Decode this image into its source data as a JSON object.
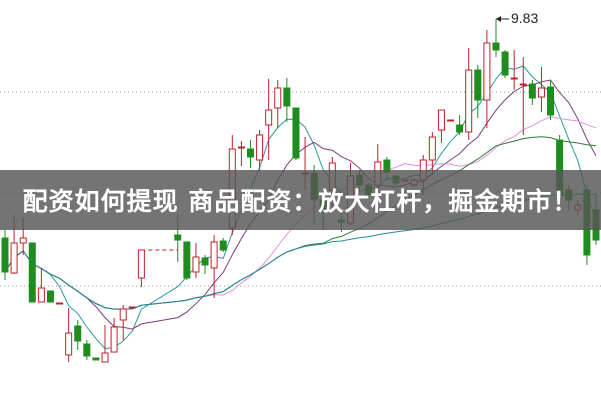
{
  "banner": {
    "title": "配资如何提现 商品配资：放大杠杆，掘金期市！"
  },
  "chart_data": {
    "type": "candlestick",
    "title": "",
    "peak_label": "9.83",
    "ylim": [
      6.01,
      10.02
    ],
    "gridlines": [
      9.1,
      8.09,
      7.16
    ],
    "colors": {
      "up": "#c0202a",
      "down": "#1e8c1e",
      "ma5": "#2a9a9a",
      "ma10": "#7a3d7a",
      "ma20": "#e48ee4",
      "ma30": "#2f7a2f",
      "ma60": "#238a9c",
      "grid": "#999999"
    },
    "moving_averages": [
      5,
      10,
      20,
      30,
      60
    ],
    "candles": [
      [
        7.64,
        7.72,
        7.22,
        7.3
      ],
      [
        7.29,
        7.87,
        7.28,
        7.59
      ],
      [
        7.59,
        7.84,
        7.47,
        7.64
      ],
      [
        7.59,
        7.59,
        7.0,
        7.0
      ],
      [
        7.0,
        7.34,
        7.0,
        7.14
      ],
      [
        7.11,
        7.11,
        7.0,
        7.0
      ],
      [
        6.99,
        6.99,
        6.99,
        6.99
      ],
      [
        6.47,
        6.94,
        6.4,
        6.69
      ],
      [
        6.76,
        6.82,
        6.52,
        6.61
      ],
      [
        6.58,
        6.62,
        6.42,
        6.46
      ],
      [
        6.44,
        6.44,
        6.42,
        6.42
      ],
      [
        6.4,
        6.77,
        6.4,
        6.49
      ],
      [
        6.5,
        6.84,
        6.5,
        6.75
      ],
      [
        6.82,
        6.97,
        6.62,
        6.93
      ],
      [
        6.95,
        6.95,
        6.95,
        6.95
      ],
      [
        7.24,
        7.52,
        7.15,
        7.52
      ],
      null,
      null,
      null,
      [
        7.67,
        7.87,
        7.4,
        7.62
      ],
      [
        7.6,
        7.6,
        7.22,
        7.24
      ],
      [
        7.3,
        7.59,
        7.24,
        7.45
      ],
      [
        7.44,
        7.47,
        7.28,
        7.37
      ],
      [
        7.34,
        7.67,
        7.04,
        7.6
      ],
      [
        7.61,
        7.64,
        7.5,
        7.52
      ],
      [
        7.74,
        8.67,
        7.67,
        8.53
      ],
      [
        8.55,
        8.61,
        8.36,
        8.55
      ],
      [
        8.53,
        8.62,
        8.34,
        8.45
      ],
      [
        8.42,
        8.72,
        8.32,
        8.67
      ],
      [
        8.77,
        9.23,
        8.42,
        8.92
      ],
      [
        8.94,
        9.22,
        8.74,
        9.14
      ],
      [
        9.14,
        9.24,
        8.8,
        8.96
      ],
      [
        8.94,
        8.94,
        8.42,
        8.44
      ],
      [
        8.29,
        8.65,
        8.12,
        8.29
      ],
      [
        8.29,
        8.37,
        7.77,
        8.02
      ],
      [
        8.02,
        8.07,
        7.72,
        7.9
      ],
      [
        8.12,
        8.45,
        7.92,
        8.39
      ],
      [
        7.82,
        7.92,
        7.7,
        7.8
      ],
      [
        7.79,
        8.39,
        7.77,
        8.26
      ],
      [
        8.27,
        8.32,
        8.1,
        8.17
      ],
      [
        8.17,
        8.19,
        8.04,
        8.07
      ],
      [
        8.17,
        8.58,
        8.12,
        8.4
      ],
      [
        8.42,
        8.45,
        8.22,
        8.3
      ],
      [
        8.26,
        8.26,
        8.17,
        8.19
      ],
      [
        8.22,
        8.22,
        8.22,
        8.22
      ],
      [
        8.17,
        8.24,
        8.15,
        8.22
      ],
      [
        8.22,
        8.47,
        8.07,
        8.42
      ],
      [
        8.42,
        8.7,
        8.27,
        8.65
      ],
      [
        8.72,
        8.92,
        8.59,
        8.92
      ],
      [
        8.82,
        8.82,
        8.82,
        8.82
      ],
      [
        8.77,
        8.87,
        8.67,
        8.7
      ],
      [
        8.7,
        9.54,
        8.62,
        9.32
      ],
      [
        9.32,
        9.37,
        8.84,
        9.02
      ],
      [
        9.02,
        9.72,
        8.74,
        9.59
      ],
      [
        9.59,
        9.83,
        9.45,
        9.52
      ],
      [
        9.5,
        9.52,
        9.24,
        9.27
      ],
      [
        9.24,
        9.52,
        9.12,
        9.24
      ],
      [
        9.18,
        9.45,
        8.67,
        9.18
      ],
      [
        9.18,
        9.22,
        8.97,
        9.04
      ],
      [
        9.05,
        9.35,
        8.9,
        9.14
      ],
      [
        9.15,
        9.22,
        8.82,
        8.87
      ],
      [
        8.62,
        8.67,
        8.02,
        8.07
      ],
      [
        8.12,
        8.17,
        7.92,
        8.02
      ],
      [
        7.92,
        8.02,
        7.87,
        7.97
      ],
      [
        8.12,
        8.17,
        7.37,
        7.47
      ],
      [
        7.92,
        8.07,
        7.57,
        7.62
      ]
    ]
  }
}
